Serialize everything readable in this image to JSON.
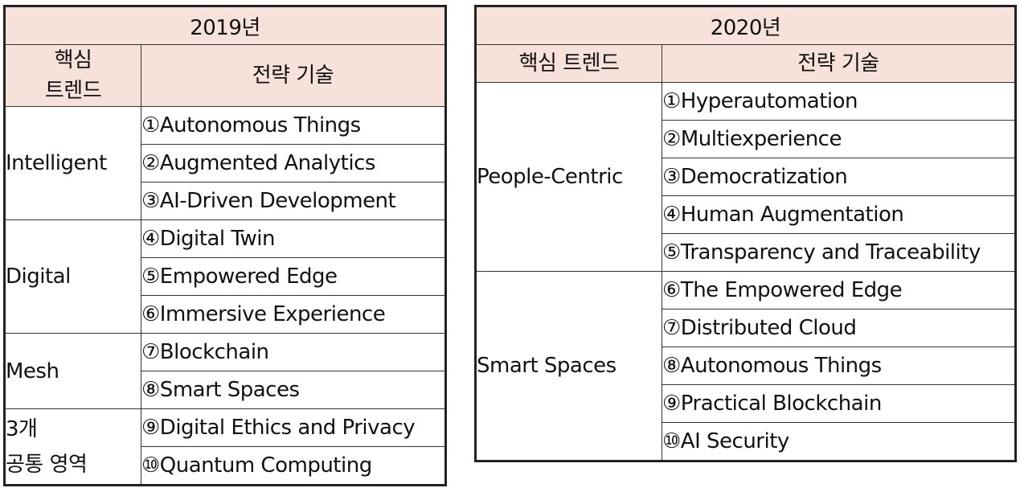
{
  "tables": [
    {
      "year": "2019년",
      "col1_header": "핵심\n트렌드",
      "col2_header": "전략 기술",
      "groups": [
        {
          "name": "Intelligent",
          "items": [
            "①Autonomous Things",
            "②Augmented Analytics",
            "③AI-Driven Development"
          ]
        },
        {
          "name": "Digital",
          "items": [
            "④Digital Twin",
            "⑤Empowered Edge",
            "⑥Immersive Experience"
          ]
        },
        {
          "name": "Mesh",
          "items": [
            "⑦Blockchain",
            "⑧Smart Spaces"
          ]
        },
        {
          "name": "3개\n공통 영역",
          "items": [
            "⑨Digital Ethics and Privacy",
            "⑩Quantum Computing"
          ]
        }
      ]
    },
    {
      "year": "2020년",
      "col1_header": "핵심 트렌드",
      "col2_header": "전략 기술",
      "groups": [
        {
          "name": "People-Centric",
          "items": [
            "①Hyperautomation",
            "②Multiexperience",
            "③Democratization",
            "④Human Augmentation",
            "⑤Transparency and Traceability"
          ]
        },
        {
          "name": "Smart Spaces",
          "items": [
            "⑥The Empowered Edge",
            "⑦Distributed Cloud",
            "⑧Autonomous Things",
            "⑨Practical Blockchain",
            "⑩AI Security"
          ]
        }
      ]
    }
  ]
}
